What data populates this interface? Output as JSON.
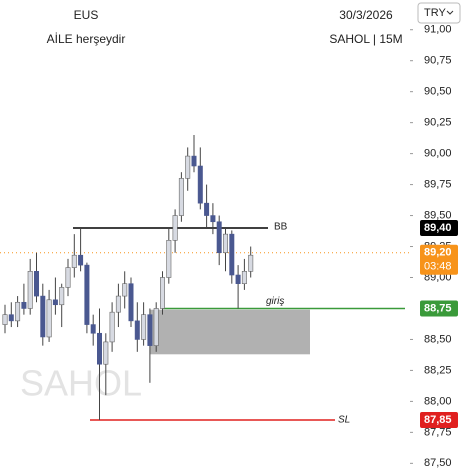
{
  "chart_data": {
    "type": "candlestick",
    "title": "EUS",
    "subtitle": "AİLE herşeydir",
    "date": "30/3/2026",
    "symbol": "SAHOL | 15M",
    "watermark": "SAHOL",
    "currency": "TRY",
    "ylim": [
      87.43,
      91.24
    ],
    "yticks": [
      {
        "value": 91,
        "label": "91,00"
      },
      {
        "value": 90.75,
        "label": "90,75"
      },
      {
        "value": 90.5,
        "label": "90,50"
      },
      {
        "value": 90.25,
        "label": "90,25"
      },
      {
        "value": 90,
        "label": "90,00"
      },
      {
        "value": 89.75,
        "label": "89,75"
      },
      {
        "value": 89.5,
        "label": "89,50"
      },
      {
        "value": 89.25,
        "label": "89,25"
      },
      {
        "value": 89,
        "label": "89,00"
      },
      {
        "value": 88.5,
        "label": "88,50"
      },
      {
        "value": 88.25,
        "label": "88,25"
      },
      {
        "value": 88,
        "label": "88,00"
      },
      {
        "value": 87.75,
        "label": "87,75"
      },
      {
        "value": 87.5,
        "label": "87,50"
      }
    ],
    "up_color": "#d7dae2",
    "down_color": "#4a5890",
    "ohlc": [
      [
        88.62,
        88.78,
        88.55,
        88.7
      ],
      [
        88.7,
        88.8,
        88.6,
        88.65
      ],
      [
        88.65,
        88.85,
        88.6,
        88.8
      ],
      [
        88.8,
        88.95,
        88.7,
        88.75
      ],
      [
        88.75,
        89.15,
        88.7,
        89.05
      ],
      [
        89.05,
        89.2,
        88.8,
        88.85
      ],
      [
        88.85,
        88.95,
        88.45,
        88.52
      ],
      [
        88.52,
        88.9,
        88.48,
        88.82
      ],
      [
        88.82,
        89.0,
        88.7,
        88.78
      ],
      [
        88.78,
        88.95,
        88.6,
        88.92
      ],
      [
        88.92,
        89.15,
        88.85,
        89.08
      ],
      [
        89.08,
        89.35,
        89.0,
        89.18
      ],
      [
        89.18,
        89.4,
        89.05,
        89.1
      ],
      [
        89.1,
        89.12,
        88.55,
        88.62
      ],
      [
        88.62,
        88.7,
        88.45,
        88.55
      ],
      [
        88.55,
        88.75,
        87.85,
        88.3
      ],
      [
        88.3,
        88.55,
        88.05,
        88.48
      ],
      [
        88.48,
        88.8,
        88.4,
        88.72
      ],
      [
        88.72,
        88.95,
        88.6,
        88.85
      ],
      [
        88.85,
        89.05,
        88.75,
        88.95
      ],
      [
        88.95,
        89.0,
        88.6,
        88.65
      ],
      [
        88.65,
        88.8,
        88.4,
        88.5
      ],
      [
        88.5,
        88.8,
        88.45,
        88.7
      ],
      [
        88.7,
        88.75,
        88.15,
        88.45
      ],
      [
        88.45,
        88.8,
        88.4,
        88.75
      ],
      [
        88.75,
        89.05,
        88.7,
        89.0
      ],
      [
        89.0,
        89.4,
        88.95,
        89.3
      ],
      [
        89.3,
        89.55,
        89.2,
        89.5
      ],
      [
        89.5,
        89.85,
        89.45,
        89.8
      ],
      [
        89.8,
        90.05,
        89.7,
        89.98
      ],
      [
        89.98,
        90.15,
        89.85,
        89.9
      ],
      [
        89.9,
        90.05,
        89.55,
        89.6
      ],
      [
        89.6,
        89.75,
        89.4,
        89.5
      ],
      [
        89.5,
        89.6,
        89.35,
        89.45
      ],
      [
        89.45,
        89.5,
        89.1,
        89.2
      ],
      [
        89.2,
        89.4,
        89.05,
        89.35
      ],
      [
        89.35,
        89.38,
        88.95,
        89.02
      ],
      [
        89.02,
        89.1,
        88.75,
        88.95
      ],
      [
        88.95,
        89.15,
        88.9,
        89.05
      ],
      [
        89.05,
        89.25,
        89.0,
        89.18
      ]
    ],
    "zone": [
      88.38,
      88.74
    ],
    "zone_color": "#a9a9a9",
    "levels": [
      {
        "name": "BB",
        "value": 89.4,
        "value_label": "89,40",
        "color": "#000000"
      },
      {
        "value": 89.2,
        "value_label": "89,20",
        "countdown": "03:48",
        "color": "#f7931a"
      },
      {
        "name": "giriş",
        "value": 88.75,
        "value_label": "88,75",
        "color": "#3a9a3a"
      },
      {
        "name": "SL",
        "value": 87.85,
        "value_label": "87,85",
        "color": "#e0201f"
      }
    ]
  }
}
